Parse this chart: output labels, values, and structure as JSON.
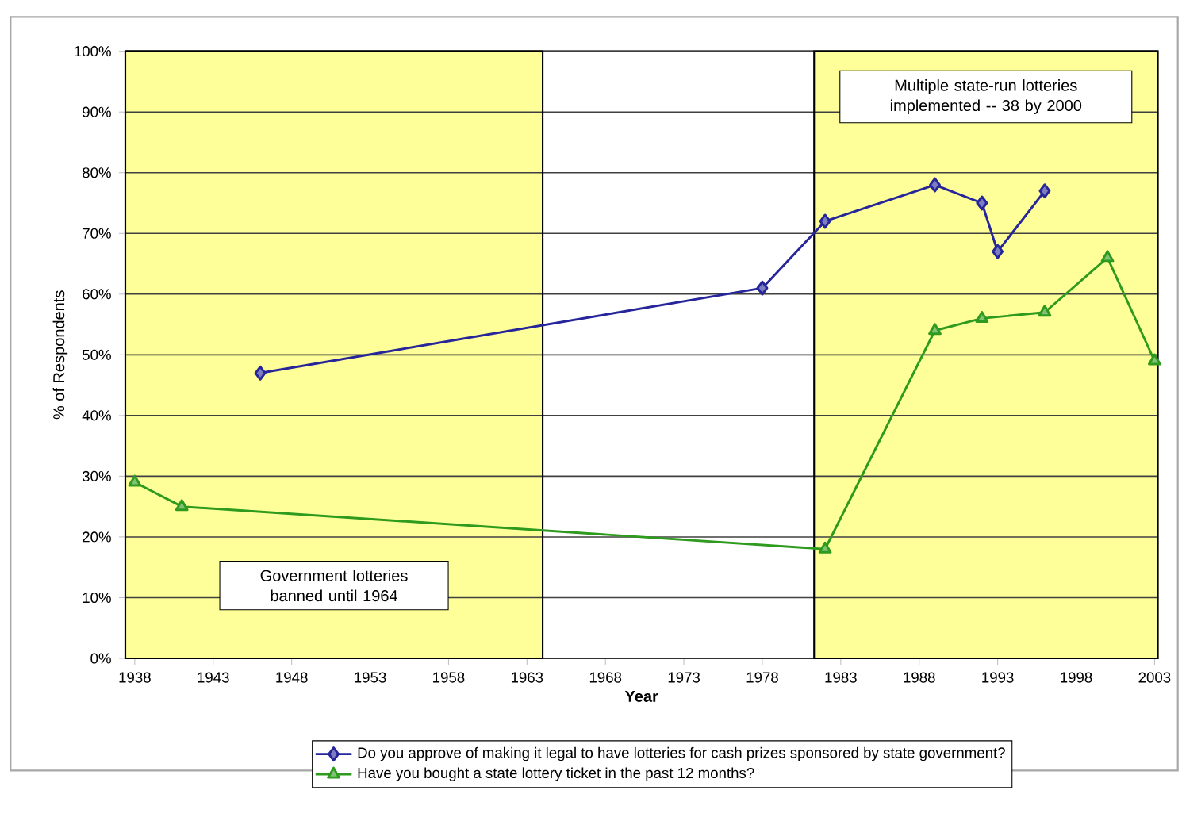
{
  "chart_data": {
    "type": "line",
    "xlabel": "Year",
    "ylabel": "% of Respondents",
    "series": [
      {
        "name": "Do you approve of making it legal to have lotteries for cash prizes sponsored by state government?",
        "color": "#26269a",
        "marker": "diamond",
        "x": [
          1946,
          1978,
          1982,
          1989,
          1992,
          1993,
          1996
        ],
        "values": [
          47,
          61,
          72,
          78,
          75,
          67,
          77
        ]
      },
      {
        "name": "Have you bought a state lottery ticket in the past 12 months?",
        "color": "#2e9a1e",
        "marker": "triangle",
        "x": [
          1938,
          1941,
          1982,
          1989,
          1992,
          1996,
          2000,
          2003
        ],
        "values": [
          29,
          25,
          18,
          54,
          56,
          57,
          66,
          49
        ]
      }
    ],
    "xlim": [
      1937.4,
      2003.2
    ],
    "ylim": [
      0,
      100
    ],
    "xticks": [
      1938,
      1943,
      1948,
      1953,
      1958,
      1963,
      1968,
      1973,
      1978,
      1983,
      1988,
      1993,
      1998,
      2003
    ],
    "yticks": [
      {
        "value": 0,
        "label": "0%"
      },
      {
        "value": 10,
        "label": "10%"
      },
      {
        "value": 20,
        "label": "20%"
      },
      {
        "value": 30,
        "label": "30%"
      },
      {
        "value": 40,
        "label": "40%"
      },
      {
        "value": 50,
        "label": "50%"
      },
      {
        "value": 60,
        "label": "60%"
      },
      {
        "value": 70,
        "label": "70%"
      },
      {
        "value": 80,
        "label": "80%"
      },
      {
        "value": 90,
        "label": "90%"
      },
      {
        "value": 100,
        "label": "100%"
      }
    ],
    "bands": [
      {
        "axis": "x",
        "from": 1937.4,
        "to": 1964,
        "label": "Government lotteries banned until 1964",
        "color": "#ffff99"
      },
      {
        "axis": "x",
        "from": 1981.3,
        "to": 2003.2,
        "label": "Multiple state-run lotteries implemented -- 38 by 2000",
        "color": "#ffff99"
      }
    ],
    "grid": "y",
    "legend": "bottom",
    "line_style": "solid"
  }
}
